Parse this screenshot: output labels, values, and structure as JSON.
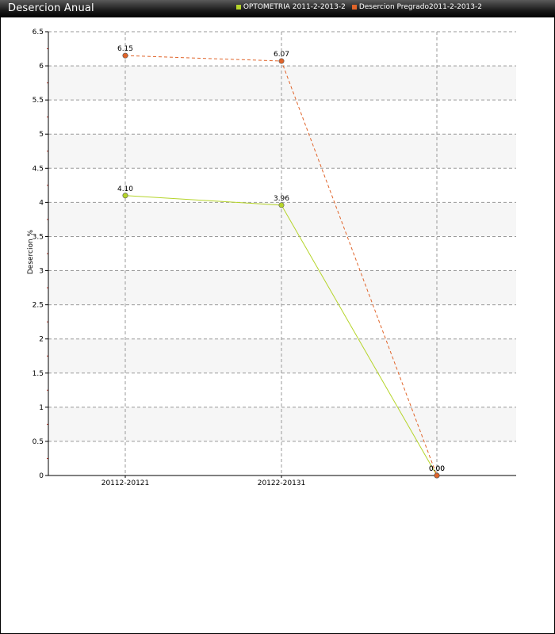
{
  "window": {
    "title": "Desercion Anual"
  },
  "chart_data": {
    "type": "line",
    "title": "Desercion Anual",
    "xlabel": "",
    "ylabel": "Desercion %",
    "ylim": [
      0,
      6.5
    ],
    "yticks": [
      "0",
      "0.5",
      "1",
      "1.5",
      "2",
      "2.5",
      "3",
      "3.5",
      "4",
      "4.5",
      "5",
      "5.5",
      "6",
      "6.5"
    ],
    "categories": [
      "20112-20121",
      "20122-20131",
      ""
    ],
    "grid": true,
    "legend_position": "top-right",
    "series": [
      {
        "name": "OPTOMETRIA 2011-2-2013-2",
        "color": "#b5d42a",
        "line_style": "solid",
        "values": [
          4.1,
          3.96,
          0.0
        ],
        "labels": [
          "4.10",
          "3.96",
          "0.00"
        ]
      },
      {
        "name": "Desercion Pregrado2011-2-2013-2",
        "color": "#e0642a",
        "line_style": "dashed",
        "values": [
          6.15,
          6.07,
          0.0
        ],
        "labels": [
          "6.15",
          "6.07",
          "0.00"
        ]
      }
    ]
  }
}
